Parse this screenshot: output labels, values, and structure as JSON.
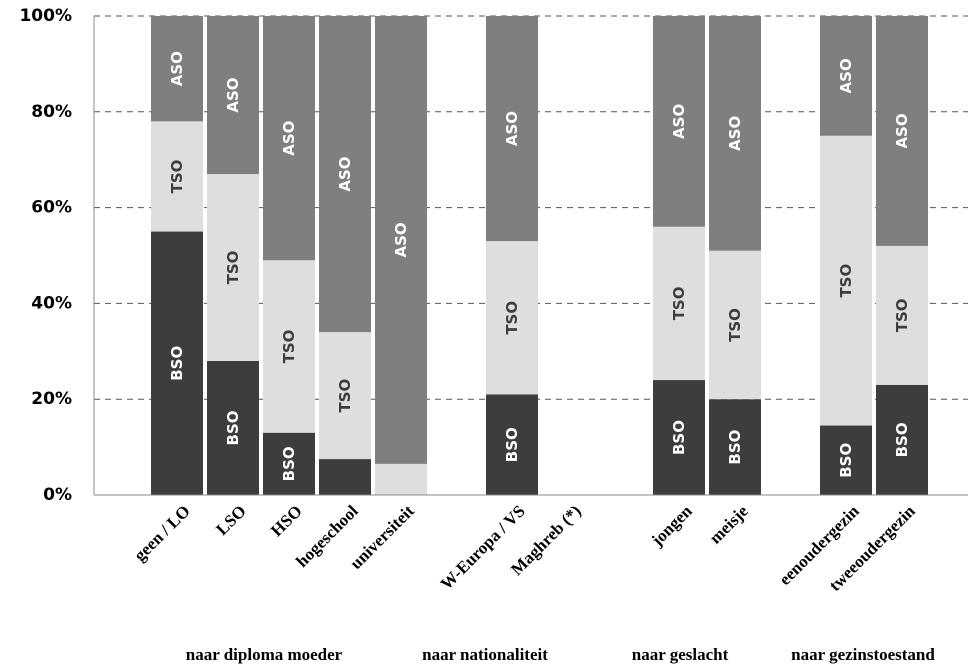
{
  "chart_data": {
    "type": "bar",
    "stacked": true,
    "percent": true,
    "ylim": [
      0,
      100
    ],
    "yticks": [
      "0%",
      "20%",
      "40%",
      "60%",
      "80%",
      "100%"
    ],
    "grid": "horizontal-dashed",
    "categories": [
      "geen / LO",
      "LSO",
      "HSO",
      "hogeschool",
      "universiteit",
      "W-Europa / VS",
      "Maghreb (*)",
      "jongen",
      "meisje",
      "eenoudergezin",
      "tweeoudergezin"
    ],
    "groups": [
      {
        "label": "naar diploma moeder",
        "categories": [
          0,
          1,
          2,
          3,
          4
        ]
      },
      {
        "label": "naar nationaliteit",
        "categories": [
          5,
          6
        ]
      },
      {
        "label": "naar geslacht",
        "categories": [
          7,
          8
        ]
      },
      {
        "label": "naar gezinstoestand",
        "categories": [
          9,
          10
        ]
      }
    ],
    "series": [
      {
        "name": "BSO",
        "color": "#3d3d3d",
        "label_color": "#ffffff",
        "values": [
          55,
          28,
          13,
          7.5,
          0,
          21,
          0,
          24,
          20,
          14.5,
          23
        ]
      },
      {
        "name": "TSO",
        "color": "#dedede",
        "label_color": "#3d3d3d",
        "values": [
          23,
          39,
          36,
          26.5,
          6.5,
          32,
          0,
          32,
          31,
          60.5,
          29
        ]
      },
      {
        "name": "ASO",
        "color": "#7f7f7f",
        "label_color": "#ffffff",
        "values": [
          22,
          33,
          51,
          66,
          93.5,
          47,
          0,
          44,
          49,
          25,
          48
        ]
      }
    ],
    "segment_labels": [
      [
        "BSO",
        "TSO",
        "ASO"
      ],
      [
        "BSO",
        "TSO",
        "ASO"
      ],
      [
        "BSO",
        "TSO",
        "ASO"
      ],
      [
        "",
        "TSO",
        "ASO"
      ],
      [
        "",
        "",
        "ASO"
      ],
      [
        "BSO",
        "TSO",
        "ASO"
      ],
      [
        "",
        "",
        ""
      ],
      [
        "BSO",
        "TSO",
        "ASO"
      ],
      [
        "BSO",
        "TSO",
        "ASO"
      ],
      [
        "BSO",
        "TSO",
        "ASO"
      ],
      [
        "BSO",
        "TSO",
        "ASO"
      ]
    ]
  }
}
